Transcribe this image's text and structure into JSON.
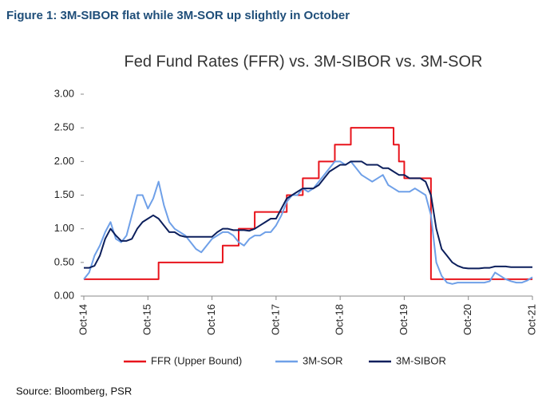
{
  "figure_caption": "Figure 1: 3M-SIBOR flat while 3M-SOR up slightly in October",
  "source": "Source: Bloomberg, PSR",
  "chart_data": {
    "type": "line",
    "title": "Fed Fund Rates (FFR) vs. 3M-SIBOR vs. 3M-SOR",
    "categories": [
      "Oct-14",
      null,
      null,
      null,
      null,
      null,
      null,
      null,
      null,
      null,
      null,
      null,
      "Oct-15",
      null,
      null,
      null,
      null,
      null,
      null,
      null,
      null,
      null,
      null,
      null,
      "Oct-16",
      null,
      null,
      null,
      null,
      null,
      null,
      null,
      null,
      null,
      null,
      null,
      "Oct-17",
      null,
      null,
      null,
      null,
      null,
      null,
      null,
      null,
      null,
      null,
      null,
      "Oct-18",
      null,
      null,
      null,
      null,
      null,
      null,
      null,
      null,
      null,
      null,
      null,
      "Oct-19",
      null,
      null,
      null,
      null,
      null,
      null,
      null,
      null,
      null,
      null,
      null,
      "Oct-20",
      null,
      null,
      null,
      null,
      null,
      null,
      null,
      null,
      null,
      null,
      null,
      "Oct-21"
    ],
    "ylim": [
      0,
      3
    ],
    "yticks": [
      {
        "value": 0,
        "label": "0.00"
      },
      {
        "value": 0.5,
        "label": "0.50"
      },
      {
        "value": 1,
        "label": "1.00"
      },
      {
        "value": 1.5,
        "label": "1.50"
      },
      {
        "value": 2,
        "label": "2.00"
      },
      {
        "value": 2.5,
        "label": "2.50"
      },
      {
        "value": 3,
        "label": "3.00"
      }
    ],
    "legend": "bottom",
    "series": [
      {
        "name": "FFR (Upper Bound)",
        "color": "#e8141c",
        "step": true,
        "values": [
          0.25,
          0.25,
          0.25,
          0.25,
          0.25,
          0.25,
          0.25,
          0.25,
          0.25,
          0.25,
          0.25,
          0.25,
          0.25,
          0.25,
          0.5,
          0.5,
          0.5,
          0.5,
          0.5,
          0.5,
          0.5,
          0.5,
          0.5,
          0.5,
          0.5,
          0.5,
          0.75,
          0.75,
          0.75,
          1,
          1,
          1,
          1.25,
          1.25,
          1.25,
          1.25,
          1.25,
          1.25,
          1.5,
          1.5,
          1.5,
          1.75,
          1.75,
          1.75,
          2,
          2,
          2,
          2.25,
          2.25,
          2.25,
          2.5,
          2.5,
          2.5,
          2.5,
          2.5,
          2.5,
          2.5,
          2.5,
          2.25,
          2,
          1.75,
          1.75,
          1.75,
          1.75,
          1.75,
          0.25,
          0.25,
          0.25,
          0.25,
          0.25,
          0.25,
          0.25,
          0.25,
          0.25,
          0.25,
          0.25,
          0.25,
          0.25,
          0.25,
          0.25,
          0.25,
          0.25,
          0.25,
          0.25,
          0.25
        ]
      },
      {
        "name": "3M-SOR",
        "color": "#6fa0e8",
        "values": [
          0.25,
          0.35,
          0.6,
          0.75,
          0.95,
          1.1,
          0.85,
          0.8,
          0.9,
          1.2,
          1.5,
          1.5,
          1.3,
          1.45,
          1.7,
          1.35,
          1.1,
          1.0,
          0.95,
          0.9,
          0.8,
          0.7,
          0.65,
          0.75,
          0.85,
          0.9,
          0.95,
          0.95,
          0.9,
          0.8,
          0.75,
          0.85,
          0.9,
          0.9,
          0.95,
          0.95,
          1.05,
          1.2,
          1.4,
          1.5,
          1.5,
          1.6,
          1.55,
          1.6,
          1.7,
          1.8,
          1.9,
          2.0,
          2.0,
          1.95,
          2.0,
          1.9,
          1.8,
          1.75,
          1.7,
          1.75,
          1.8,
          1.65,
          1.6,
          1.55,
          1.55,
          1.55,
          1.6,
          1.55,
          1.5,
          1.2,
          0.5,
          0.3,
          0.2,
          0.18,
          0.2,
          0.2,
          0.2,
          0.2,
          0.2,
          0.2,
          0.22,
          0.35,
          0.3,
          0.25,
          0.22,
          0.2,
          0.2,
          0.23,
          0.28
        ]
      },
      {
        "name": "3M-SIBOR",
        "color": "#0c1f5c",
        "values": [
          0.42,
          0.42,
          0.45,
          0.6,
          0.85,
          1.0,
          0.9,
          0.82,
          0.82,
          0.85,
          1.0,
          1.1,
          1.15,
          1.2,
          1.15,
          1.05,
          0.95,
          0.95,
          0.9,
          0.88,
          0.88,
          0.88,
          0.88,
          0.88,
          0.88,
          0.95,
          1.0,
          1.0,
          0.98,
          0.98,
          0.98,
          0.97,
          1.0,
          1.05,
          1.1,
          1.15,
          1.15,
          1.3,
          1.45,
          1.5,
          1.55,
          1.6,
          1.6,
          1.6,
          1.65,
          1.75,
          1.85,
          1.9,
          1.95,
          1.95,
          2.0,
          2.0,
          2.0,
          1.95,
          1.95,
          1.95,
          1.9,
          1.9,
          1.85,
          1.8,
          1.8,
          1.75,
          1.75,
          1.75,
          1.7,
          1.5,
          1.0,
          0.7,
          0.6,
          0.5,
          0.45,
          0.42,
          0.41,
          0.41,
          0.41,
          0.42,
          0.42,
          0.44,
          0.44,
          0.44,
          0.43,
          0.43,
          0.43,
          0.43,
          0.43
        ]
      }
    ]
  }
}
